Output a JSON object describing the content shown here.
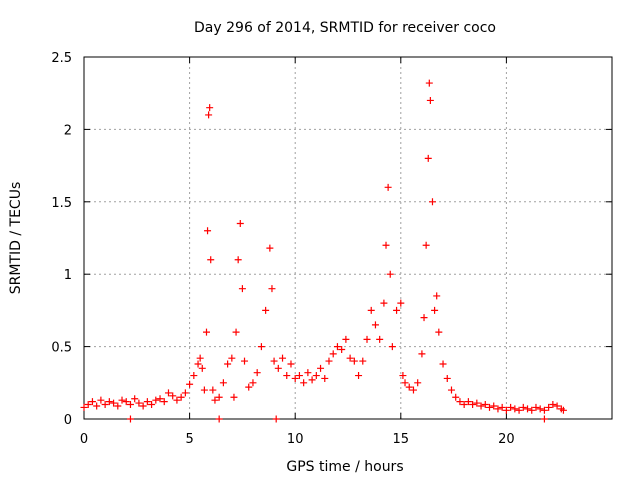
{
  "chart_data": {
    "type": "scatter",
    "title": "Day 296 of 2014, SRMTID for receiver coco",
    "xlabel": "GPS time / hours",
    "ylabel": "SRMTID / TECUs",
    "xlim": [
      0,
      25
    ],
    "ylim": [
      0,
      2.5
    ],
    "xticks": [
      0,
      5,
      10,
      15,
      20
    ],
    "xtick_labels": [
      "0",
      "5",
      "10",
      "15",
      "20"
    ],
    "yticks": [
      0,
      0.5,
      1,
      1.5,
      2,
      2.5
    ],
    "ytick_labels": [
      "0",
      "0.5",
      "1",
      "1.5",
      "2",
      "2.5"
    ],
    "grid": true,
    "marker": "+",
    "color": "#ff0000",
    "series": [
      {
        "name": "SRMTID",
        "points": [
          [
            0.0,
            0.08
          ],
          [
            0.2,
            0.1
          ],
          [
            0.4,
            0.12
          ],
          [
            0.6,
            0.09
          ],
          [
            0.8,
            0.13
          ],
          [
            1.0,
            0.1
          ],
          [
            1.2,
            0.12
          ],
          [
            1.4,
            0.11
          ],
          [
            1.6,
            0.09
          ],
          [
            1.8,
            0.13
          ],
          [
            2.0,
            0.12
          ],
          [
            2.2,
            0.1
          ],
          [
            2.4,
            0.14
          ],
          [
            2.6,
            0.11
          ],
          [
            2.8,
            0.09
          ],
          [
            3.0,
            0.12
          ],
          [
            3.2,
            0.1
          ],
          [
            3.4,
            0.13
          ],
          [
            3.6,
            0.14
          ],
          [
            3.8,
            0.12
          ],
          [
            4.0,
            0.18
          ],
          [
            4.2,
            0.16
          ],
          [
            4.4,
            0.13
          ],
          [
            4.6,
            0.15
          ],
          [
            4.8,
            0.18
          ],
          [
            5.0,
            0.24
          ],
          [
            5.2,
            0.3
          ],
          [
            5.4,
            0.38
          ],
          [
            5.5,
            0.42
          ],
          [
            5.6,
            0.35
          ],
          [
            5.7,
            0.2
          ],
          [
            5.8,
            0.6
          ],
          [
            5.85,
            1.3
          ],
          [
            5.9,
            2.1
          ],
          [
            5.95,
            2.15
          ],
          [
            6.0,
            1.1
          ],
          [
            6.1,
            0.2
          ],
          [
            6.2,
            0.13
          ],
          [
            6.4,
            0.15
          ],
          [
            6.6,
            0.25
          ],
          [
            6.8,
            0.38
          ],
          [
            7.0,
            0.42
          ],
          [
            7.1,
            0.15
          ],
          [
            7.2,
            0.6
          ],
          [
            7.3,
            1.1
          ],
          [
            7.4,
            1.35
          ],
          [
            7.5,
            0.9
          ],
          [
            7.6,
            0.4
          ],
          [
            7.8,
            0.22
          ],
          [
            8.0,
            0.25
          ],
          [
            8.2,
            0.32
          ],
          [
            8.4,
            0.5
          ],
          [
            8.6,
            0.75
          ],
          [
            8.8,
            1.18
          ],
          [
            8.9,
            0.9
          ],
          [
            9.0,
            0.4
          ],
          [
            9.2,
            0.35
          ],
          [
            9.4,
            0.42
          ],
          [
            9.6,
            0.3
          ],
          [
            9.8,
            0.38
          ],
          [
            10.0,
            0.28
          ],
          [
            10.2,
            0.3
          ],
          [
            10.4,
            0.25
          ],
          [
            10.6,
            0.32
          ],
          [
            10.8,
            0.27
          ],
          [
            11.0,
            0.3
          ],
          [
            11.2,
            0.35
          ],
          [
            11.4,
            0.28
          ],
          [
            11.6,
            0.4
          ],
          [
            11.8,
            0.45
          ],
          [
            12.0,
            0.5
          ],
          [
            12.2,
            0.48
          ],
          [
            12.4,
            0.55
          ],
          [
            12.6,
            0.42
          ],
          [
            12.8,
            0.4
          ],
          [
            13.0,
            0.3
          ],
          [
            13.2,
            0.4
          ],
          [
            13.4,
            0.55
          ],
          [
            13.6,
            0.75
          ],
          [
            13.8,
            0.65
          ],
          [
            14.0,
            0.55
          ],
          [
            14.2,
            0.8
          ],
          [
            14.3,
            1.2
          ],
          [
            14.4,
            1.6
          ],
          [
            14.5,
            1.0
          ],
          [
            14.6,
            0.5
          ],
          [
            14.8,
            0.75
          ],
          [
            15.0,
            0.8
          ],
          [
            15.1,
            0.3
          ],
          [
            15.2,
            0.25
          ],
          [
            15.4,
            0.22
          ],
          [
            15.6,
            0.2
          ],
          [
            15.8,
            0.25
          ],
          [
            16.0,
            0.45
          ],
          [
            16.1,
            0.7
          ],
          [
            16.2,
            1.2
          ],
          [
            16.3,
            1.8
          ],
          [
            16.35,
            2.32
          ],
          [
            16.4,
            2.2
          ],
          [
            16.5,
            1.5
          ],
          [
            16.6,
            0.75
          ],
          [
            16.7,
            0.85
          ],
          [
            16.8,
            0.6
          ],
          [
            17.0,
            0.38
          ],
          [
            17.2,
            0.28
          ],
          [
            17.4,
            0.2
          ],
          [
            17.6,
            0.15
          ],
          [
            17.8,
            0.12
          ],
          [
            18.0,
            0.1
          ],
          [
            18.2,
            0.12
          ],
          [
            18.4,
            0.1
          ],
          [
            18.6,
            0.11
          ],
          [
            18.8,
            0.09
          ],
          [
            19.0,
            0.1
          ],
          [
            19.2,
            0.08
          ],
          [
            19.4,
            0.09
          ],
          [
            19.6,
            0.07
          ],
          [
            19.8,
            0.08
          ],
          [
            20.0,
            0.06
          ],
          [
            20.2,
            0.08
          ],
          [
            20.4,
            0.07
          ],
          [
            20.6,
            0.06
          ],
          [
            20.8,
            0.08
          ],
          [
            21.0,
            0.07
          ],
          [
            21.2,
            0.06
          ],
          [
            21.4,
            0.08
          ],
          [
            21.6,
            0.07
          ],
          [
            21.8,
            0.06
          ],
          [
            22.0,
            0.08
          ],
          [
            22.2,
            0.1
          ],
          [
            22.4,
            0.09
          ],
          [
            22.6,
            0.07
          ],
          [
            22.7,
            0.06
          ],
          [
            2.2,
            0.0
          ],
          [
            6.4,
            0.0
          ],
          [
            9.1,
            0.0
          ],
          [
            21.8,
            0.0
          ]
        ]
      }
    ]
  }
}
